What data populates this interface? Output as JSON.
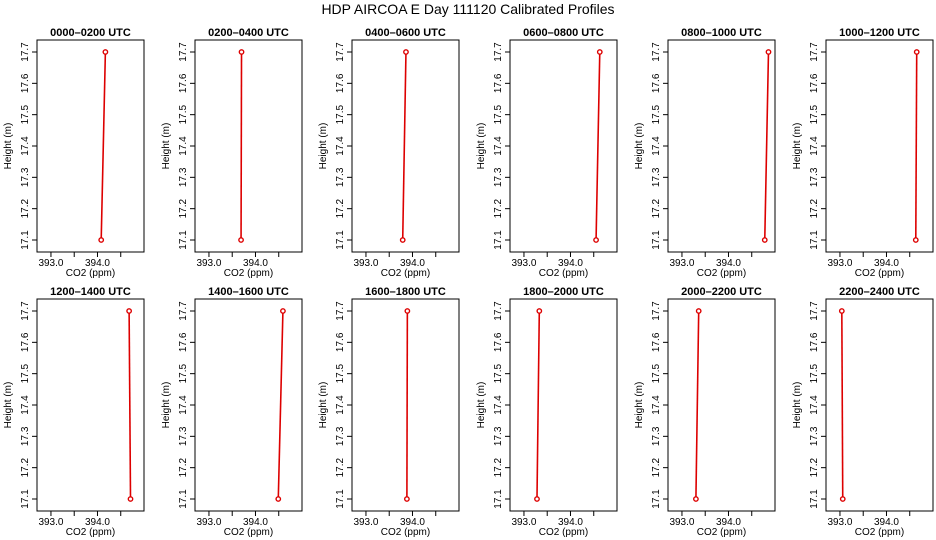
{
  "figure_title": "HDP AIRCOA E  Day 111120  Calibrated Profiles",
  "chart_data": [
    {
      "type": "line",
      "title": "0000–0200 UTC",
      "xlabel": "CO2 (ppm)",
      "ylabel": "Height (m)",
      "xlim": [
        392.7,
        395.0
      ],
      "ylim": [
        17.08,
        17.72
      ],
      "xticks": [
        "393.0",
        "394.0"
      ],
      "yticks": [
        "17.1",
        "17.2",
        "17.3",
        "17.4",
        "17.5",
        "17.6",
        "17.7"
      ],
      "series": [
        {
          "x": [
            394.08,
            394.17
          ],
          "y": [
            17.1,
            17.7
          ]
        }
      ]
    },
    {
      "type": "line",
      "title": "0200–0400 UTC",
      "xlabel": "CO2 (ppm)",
      "ylabel": "Height (m)",
      "xlim": [
        392.7,
        395.0
      ],
      "ylim": [
        17.08,
        17.72
      ],
      "xticks": [
        "393.0",
        "394.0"
      ],
      "yticks": [
        "17.1",
        "17.2",
        "17.3",
        "17.4",
        "17.5",
        "17.6",
        "17.7"
      ],
      "series": [
        {
          "x": [
            393.69,
            393.7
          ],
          "y": [
            17.1,
            17.7
          ]
        }
      ]
    },
    {
      "type": "line",
      "title": "0400–0600 UTC",
      "xlabel": "CO2 (ppm)",
      "ylabel": "Height (m)",
      "xlim": [
        392.7,
        395.0
      ],
      "ylim": [
        17.08,
        17.72
      ],
      "xticks": [
        "393.0",
        "394.0"
      ],
      "yticks": [
        "17.1",
        "17.2",
        "17.3",
        "17.4",
        "17.5",
        "17.6",
        "17.7"
      ],
      "series": [
        {
          "x": [
            393.79,
            393.86
          ],
          "y": [
            17.1,
            17.7
          ]
        }
      ]
    },
    {
      "type": "line",
      "title": "0600–0800 UTC",
      "xlabel": "CO2 (ppm)",
      "ylabel": "Height (m)",
      "xlim": [
        392.7,
        395.0
      ],
      "ylim": [
        17.08,
        17.72
      ],
      "xticks": [
        "393.0",
        "394.0"
      ],
      "yticks": [
        "17.1",
        "17.2",
        "17.3",
        "17.4",
        "17.5",
        "17.6",
        "17.7"
      ],
      "series": [
        {
          "x": [
            394.55,
            394.63
          ],
          "y": [
            17.1,
            17.7
          ]
        }
      ]
    },
    {
      "type": "line",
      "title": "0800–1000 UTC",
      "xlabel": "CO2 (ppm)",
      "ylabel": "Height (m)",
      "xlim": [
        392.7,
        395.0
      ],
      "ylim": [
        17.08,
        17.72
      ],
      "xticks": [
        "393.0",
        "394.0"
      ],
      "yticks": [
        "17.1",
        "17.2",
        "17.3",
        "17.4",
        "17.5",
        "17.6",
        "17.7"
      ],
      "series": [
        {
          "x": [
            394.78,
            394.86
          ],
          "y": [
            17.1,
            17.7
          ]
        }
      ]
    },
    {
      "type": "line",
      "title": "1000–1200 UTC",
      "xlabel": "CO2 (ppm)",
      "ylabel": "Height (m)",
      "xlim": [
        392.7,
        395.0
      ],
      "ylim": [
        17.08,
        17.72
      ],
      "xticks": [
        "393.0",
        "394.0"
      ],
      "yticks": [
        "17.1",
        "17.2",
        "17.3",
        "17.4",
        "17.5",
        "17.6",
        "17.7"
      ],
      "series": [
        {
          "x": [
            394.63,
            394.65
          ],
          "y": [
            17.1,
            17.7
          ]
        }
      ]
    },
    {
      "type": "line",
      "title": "1200–1400 UTC",
      "xlabel": "CO2 (ppm)",
      "ylabel": "Height (m)",
      "xlim": [
        392.7,
        395.0
      ],
      "ylim": [
        17.08,
        17.72
      ],
      "xticks": [
        "393.0",
        "394.0"
      ],
      "yticks": [
        "17.1",
        "17.2",
        "17.3",
        "17.4",
        "17.5",
        "17.6",
        "17.7"
      ],
      "series": [
        {
          "x": [
            394.71,
            394.68
          ],
          "y": [
            17.1,
            17.7
          ]
        }
      ]
    },
    {
      "type": "line",
      "title": "1400–1600 UTC",
      "xlabel": "CO2 (ppm)",
      "ylabel": "Height (m)",
      "xlim": [
        392.7,
        395.0
      ],
      "ylim": [
        17.08,
        17.72
      ],
      "xticks": [
        "393.0",
        "394.0"
      ],
      "yticks": [
        "17.1",
        "17.2",
        "17.3",
        "17.4",
        "17.5",
        "17.6",
        "17.7"
      ],
      "series": [
        {
          "x": [
            394.49,
            394.59
          ],
          "y": [
            17.1,
            17.7
          ]
        }
      ]
    },
    {
      "type": "line",
      "title": "1600–1800 UTC",
      "xlabel": "CO2 (ppm)",
      "ylabel": "Height (m)",
      "xlim": [
        392.7,
        395.0
      ],
      "ylim": [
        17.08,
        17.72
      ],
      "xticks": [
        "393.0",
        "394.0"
      ],
      "yticks": [
        "17.1",
        "17.2",
        "17.3",
        "17.4",
        "17.5",
        "17.6",
        "17.7"
      ],
      "series": [
        {
          "x": [
            393.88,
            393.89
          ],
          "y": [
            17.1,
            17.7
          ]
        }
      ]
    },
    {
      "type": "line",
      "title": "1800–2000 UTC",
      "xlabel": "CO2 (ppm)",
      "ylabel": "Height (m)",
      "xlim": [
        392.7,
        395.0
      ],
      "ylim": [
        17.08,
        17.72
      ],
      "xticks": [
        "393.0",
        "394.0"
      ],
      "yticks": [
        "17.1",
        "17.2",
        "17.3",
        "17.4",
        "17.5",
        "17.6",
        "17.7"
      ],
      "series": [
        {
          "x": [
            393.28,
            393.33
          ],
          "y": [
            17.1,
            17.7
          ]
        }
      ]
    },
    {
      "type": "line",
      "title": "2000–2200 UTC",
      "xlabel": "CO2 (ppm)",
      "ylabel": "Height (m)",
      "xlim": [
        392.7,
        395.0
      ],
      "ylim": [
        17.08,
        17.72
      ],
      "xticks": [
        "393.0",
        "394.0"
      ],
      "yticks": [
        "17.1",
        "17.2",
        "17.3",
        "17.4",
        "17.5",
        "17.6",
        "17.7"
      ],
      "series": [
        {
          "x": [
            393.3,
            393.36
          ],
          "y": [
            17.1,
            17.7
          ]
        }
      ]
    },
    {
      "type": "line",
      "title": "2200–2400 UTC",
      "xlabel": "CO2 (ppm)",
      "ylabel": "Height (m)",
      "xlim": [
        392.7,
        395.0
      ],
      "ylim": [
        17.08,
        17.72
      ],
      "xticks": [
        "393.0",
        "394.0"
      ],
      "yticks": [
        "17.1",
        "17.2",
        "17.3",
        "17.4",
        "17.5",
        "17.6",
        "17.7"
      ],
      "series": [
        {
          "x": [
            393.06,
            393.04
          ],
          "y": [
            17.1,
            17.7
          ]
        }
      ]
    }
  ],
  "colors": {
    "series_line": "#dd0000",
    "axis": "#000000",
    "background": "#ffffff"
  }
}
